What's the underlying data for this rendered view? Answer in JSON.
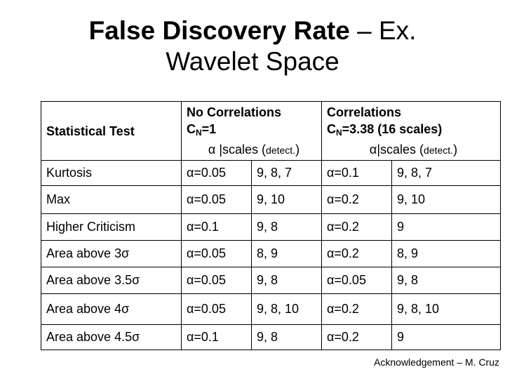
{
  "title": {
    "line1_bold": "False Discovery Rate",
    "line1_rest": " – Ex.",
    "line2": "Wavelet Space"
  },
  "table": {
    "header": {
      "col1": "Statistical Test",
      "col2": {
        "line1": "No Correlations",
        "c": "C",
        "sub": "N",
        "value": "=1",
        "sub_main": "α |scales (",
        "sub_small": "detect.",
        "sub_close": ")"
      },
      "col3": {
        "line1": "Correlations",
        "c": "C",
        "sub": "N",
        "value": "=3.38 (16 scales)",
        "sub_main": "α|scales (",
        "sub_small": "detect.",
        "sub_close": ")"
      }
    },
    "rows": [
      {
        "test": "Kurtosis",
        "nc_alpha": "α=0.05",
        "nc_scales": "9, 8, 7",
        "c_alpha": "α=0.1",
        "c_scales": "9, 8, 7"
      },
      {
        "test": "Max",
        "nc_alpha": "α=0.05",
        "nc_scales": "9, 10",
        "c_alpha": "α=0.2",
        "c_scales": "9, 10"
      },
      {
        "test": "Higher Criticism",
        "nc_alpha": "α=0.1",
        "nc_scales": "9, 8",
        "c_alpha": "α=0.2",
        "c_scales": "9"
      },
      {
        "test": "Area above 3σ",
        "nc_alpha": "α=0.05",
        "nc_scales": "8, 9",
        "c_alpha": "α=0.2",
        "c_scales": "8, 9"
      },
      {
        "test": "Area above 3.5σ",
        "nc_alpha": "α=0.05",
        "nc_scales": "9, 8",
        "c_alpha": "α=0.05",
        "c_scales": "9, 8"
      },
      {
        "test": "Area above 4σ",
        "nc_alpha": "α=0.05",
        "nc_scales": "9, 8, 10",
        "c_alpha": "α=0.2",
        "c_scales": "9, 8, 10"
      },
      {
        "test": "Area above 4.5σ",
        "nc_alpha": "α=0.1",
        "nc_scales": "9, 8",
        "c_alpha": "α=0.2",
        "c_scales": "9"
      }
    ]
  },
  "acknowledgement": "Acknowledgement – M. Cruz"
}
